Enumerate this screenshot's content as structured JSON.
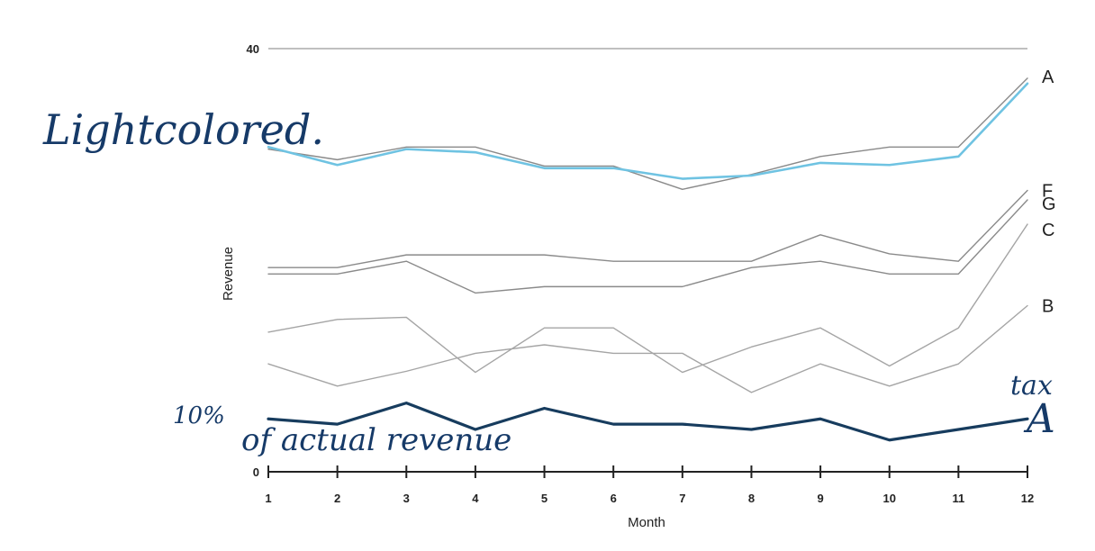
{
  "chart_data": {
    "type": "line",
    "xlabel": "Month",
    "ylabel": "Revenue",
    "x": [
      1,
      2,
      3,
      4,
      5,
      6,
      7,
      8,
      9,
      10,
      11,
      12
    ],
    "ylim": [
      0,
      40
    ],
    "y_tick_labels": [
      "0",
      "40"
    ],
    "grid": false,
    "legend": "series labels at right end of lines",
    "series": [
      {
        "name": "A",
        "color": "#8a8a8a",
        "values": [
          30.5,
          29.5,
          30.7,
          30.7,
          28.9,
          28.9,
          26.7,
          28.1,
          29.8,
          30.7,
          30.7,
          37.2
        ]
      },
      {
        "name": "F",
        "color": "#8a8a8a",
        "values": [
          19.3,
          19.3,
          20.5,
          20.5,
          20.5,
          19.9,
          19.9,
          19.9,
          22.4,
          20.6,
          19.9,
          26.6
        ]
      },
      {
        "name": "G",
        "color": "#8a8a8a",
        "values": [
          18.7,
          18.7,
          19.9,
          16.9,
          17.5,
          17.5,
          17.5,
          19.3,
          19.9,
          18.7,
          18.7,
          25.7
        ]
      },
      {
        "name": "C",
        "color": "#a5a5a5",
        "values": [
          13.2,
          14.4,
          14.6,
          9.4,
          13.6,
          13.6,
          9.4,
          11.8,
          13.6,
          10.0,
          13.6,
          23.4
        ]
      },
      {
        "name": "B",
        "color": "#a5a5a5",
        "values": [
          10.2,
          8.1,
          9.5,
          11.2,
          12.0,
          11.2,
          11.2,
          7.5,
          10.2,
          8.1,
          10.2,
          15.7
        ]
      },
      {
        "name": "",
        "color": "#6fc3e2",
        "values": [
          30.7,
          29.0,
          30.5,
          30.2,
          28.7,
          28.7,
          27.7,
          28.0,
          29.2,
          29.0,
          29.8,
          36.7
        ]
      },
      {
        "name": "",
        "color": "#173c5e",
        "values": [
          5.0,
          4.5,
          6.5,
          4.0,
          6.0,
          4.5,
          4.5,
          4.0,
          5.0,
          3.0,
          4.0,
          5.0
        ]
      }
    ]
  },
  "annotations": {
    "light_colored": "Lightcolored.",
    "ten_pct": "10%",
    "of_actual_revenue": "of actual revenue",
    "tax": "tax",
    "tax_a": "A"
  }
}
